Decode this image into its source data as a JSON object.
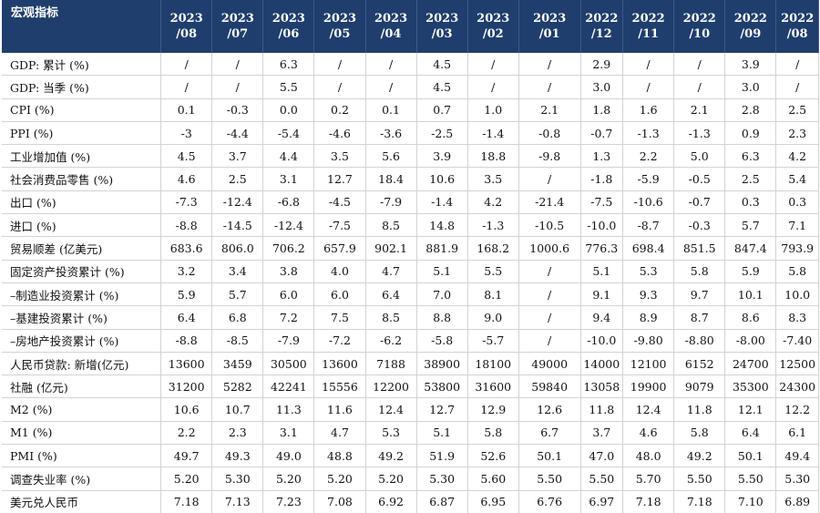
{
  "table": {
    "header": {
      "indicator_label": "宏观指标",
      "columns": [
        {
          "year": "2023",
          "month": "/08"
        },
        {
          "year": "2023",
          "month": "/07"
        },
        {
          "year": "2023",
          "month": "/06"
        },
        {
          "year": "2023",
          "month": "/05"
        },
        {
          "year": "2023",
          "month": "/04"
        },
        {
          "year": "2023",
          "month": "/03"
        },
        {
          "year": "2023",
          "month": "/02"
        },
        {
          "year": "2023",
          "month": "/01"
        },
        {
          "year": "2022",
          "month": "/12"
        },
        {
          "year": "2022",
          "month": "/11"
        },
        {
          "year": "2022",
          "month": "/10"
        },
        {
          "year": "2022",
          "month": "/09"
        },
        {
          "year": "2022",
          "month": "/08"
        }
      ]
    },
    "rows": [
      {
        "label": "GDP: 累计 (%)",
        "values": [
          "/",
          "/",
          "6.3",
          "/",
          "/",
          "4.5",
          "/",
          "/",
          "2.9",
          "/",
          "/",
          "3.9",
          "/"
        ]
      },
      {
        "label": "GDP: 当季 (%)",
        "values": [
          "/",
          "/",
          "5.5",
          "/",
          "/",
          "4.5",
          "/",
          "/",
          "3.0",
          "/",
          "/",
          "3.0",
          "/"
        ]
      },
      {
        "label": "CPI (%)",
        "values": [
          "0.1",
          "-0.3",
          "0.0",
          "0.2",
          "0.1",
          "0.7",
          "1.0",
          "2.1",
          "1.8",
          "1.6",
          "2.1",
          "2.8",
          "2.5"
        ]
      },
      {
        "label": "PPI (%)",
        "values": [
          "-3",
          "-4.4",
          "-5.4",
          "-4.6",
          "-3.6",
          "-2.5",
          "-1.4",
          "-0.8",
          "-0.7",
          "-1.3",
          "-1.3",
          "0.9",
          "2.3"
        ]
      },
      {
        "label": "工业增加值 (%)",
        "values": [
          "4.5",
          "3.7",
          "4.4",
          "3.5",
          "5.6",
          "3.9",
          "18.8",
          "-9.8",
          "1.3",
          "2.2",
          "5.0",
          "6.3",
          "4.2"
        ]
      },
      {
        "label": "社会消费品零售 (%)",
        "values": [
          "4.6",
          "2.5",
          "3.1",
          "12.7",
          "18.4",
          "10.6",
          "3.5",
          "/",
          "-1.8",
          "-5.9",
          "-0.5",
          "2.5",
          "5.4"
        ]
      },
      {
        "label": "出口 (%)",
        "values": [
          "-7.3",
          "-12.4",
          "-6.8",
          "-4.5",
          "-7.9",
          "-1.4",
          "4.2",
          "-21.4",
          "-7.5",
          "-10.6",
          "-0.7",
          "0.3",
          "0.3"
        ]
      },
      {
        "label": "进口 (%)",
        "values": [
          "-8.8",
          "-14.5",
          "-12.4",
          "-7.5",
          "8.5",
          "14.8",
          "-1.3",
          "-10.5",
          "-10.0",
          "-8.7",
          "-0.3",
          "5.7",
          "7.1"
        ]
      },
      {
        "label": "贸易顺差 (亿美元)",
        "values": [
          "683.6",
          "806.0",
          "706.2",
          "657.9",
          "902.1",
          "881.9",
          "168.2",
          "1000.6",
          "776.3",
          "698.4",
          "851.5",
          "847.4",
          "793.9"
        ]
      },
      {
        "label": "固定资产投资累计 (%)",
        "values": [
          "3.2",
          "3.4",
          "3.8",
          "4.0",
          "4.7",
          "5.1",
          "5.5",
          "/",
          "5.1",
          "5.3",
          "5.8",
          "5.9",
          "5.8"
        ]
      },
      {
        "label": "–制造业投资累计 (%)",
        "values": [
          "5.9",
          "5.7",
          "6.0",
          "6.0",
          "6.4",
          "7.0",
          "8.1",
          "/",
          "9.1",
          "9.3",
          "9.7",
          "10.1",
          "10.0"
        ]
      },
      {
        "label": "–基建投资累计 (%)",
        "values": [
          "6.4",
          "6.8",
          "7.2",
          "7.5",
          "8.5",
          "8.8",
          "9.0",
          "/",
          "9.4",
          "8.9",
          "8.7",
          "8.6",
          "8.3"
        ]
      },
      {
        "label": "–房地产投资累计 (%)",
        "values": [
          "-8.8",
          "-8.5",
          "-7.9",
          "-7.2",
          "-6.2",
          "-5.8",
          "-5.7",
          "/",
          "-10.0",
          "-9.80",
          "-8.80",
          "-8.00",
          "-7.40"
        ]
      },
      {
        "label": "人民币贷款: 新增(亿元)",
        "values": [
          "13600",
          "3459",
          "30500",
          "13600",
          "7188",
          "38900",
          "18100",
          "49000",
          "14000",
          "12100",
          "6152",
          "24700",
          "12500"
        ]
      },
      {
        "label": "社融 (亿元)",
        "values": [
          "31200",
          "5282",
          "42241",
          "15556",
          "12200",
          "53800",
          "31600",
          "59840",
          "13058",
          "19900",
          "9079",
          "35300",
          "24300"
        ]
      },
      {
        "label": "M2 (%)",
        "values": [
          "10.6",
          "10.7",
          "11.3",
          "11.6",
          "12.4",
          "12.7",
          "12.9",
          "12.6",
          "11.8",
          "12.4",
          "11.8",
          "12.1",
          "12.2"
        ]
      },
      {
        "label": "M1 (%)",
        "values": [
          "2.2",
          "2.3",
          "3.1",
          "4.7",
          "5.3",
          "5.1",
          "5.8",
          "6.7",
          "3.7",
          "4.6",
          "5.8",
          "6.4",
          "6.1"
        ]
      },
      {
        "label": "PMI (%)",
        "values": [
          "49.7",
          "49.3",
          "49.0",
          "48.8",
          "49.2",
          "51.9",
          "52.6",
          "50.1",
          "47.0",
          "48.0",
          "49.2",
          "50.1",
          "49.4"
        ]
      },
      {
        "label": "调查失业率 (%)",
        "values": [
          "5.20",
          "5.30",
          "5.20",
          "5.20",
          "5.20",
          "5.30",
          "5.60",
          "5.50",
          "5.50",
          "5.70",
          "5.50",
          "5.50",
          "5.30"
        ]
      },
      {
        "label": "美元兑人民币",
        "values": [
          "7.18",
          "7.13",
          "7.23",
          "7.08",
          "6.92",
          "6.87",
          "6.95",
          "6.76",
          "6.97",
          "7.18",
          "7.18",
          "7.10",
          "6.89"
        ]
      }
    ]
  }
}
